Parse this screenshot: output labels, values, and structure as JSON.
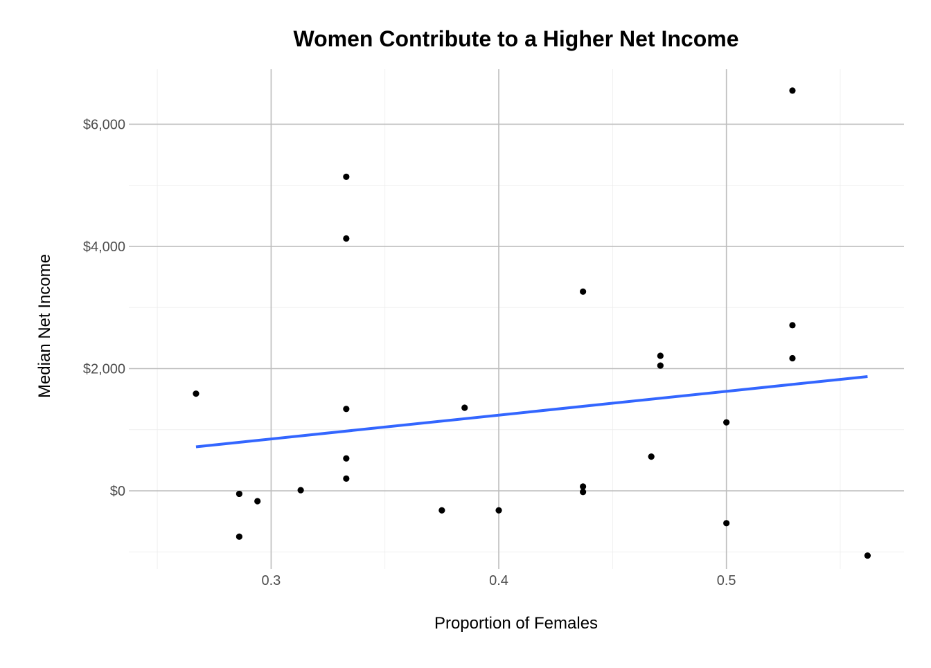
{
  "chart_data": {
    "type": "scatter",
    "title": "Women Contribute to a Higher Net Income",
    "xlabel": "Proportion of Females",
    "ylabel": "Median Net Income",
    "xlim": [
      0.2375,
      0.578
    ],
    "ylim": [
      -1280,
      6900
    ],
    "x_ticks": [
      0.3,
      0.4,
      0.5
    ],
    "x_tick_labels": [
      "0.3",
      "0.4",
      "0.5"
    ],
    "y_ticks": [
      0,
      2000,
      4000,
      6000
    ],
    "y_tick_labels": [
      "$0",
      "$2,000",
      "$4,000",
      "$6,000"
    ],
    "grid": "major and minor lines, light gray",
    "series": [
      {
        "points": [
          {
            "x": 0.267,
            "y": 1590
          },
          {
            "x": 0.286,
            "y": -50
          },
          {
            "x": 0.286,
            "y": -750
          },
          {
            "x": 0.294,
            "y": -170
          },
          {
            "x": 0.313,
            "y": 10
          },
          {
            "x": 0.333,
            "y": 5140
          },
          {
            "x": 0.333,
            "y": 4130
          },
          {
            "x": 0.333,
            "y": 1340
          },
          {
            "x": 0.333,
            "y": 530
          },
          {
            "x": 0.333,
            "y": 200
          },
          {
            "x": 0.375,
            "y": -320
          },
          {
            "x": 0.385,
            "y": 1360
          },
          {
            "x": 0.4,
            "y": -320
          },
          {
            "x": 0.437,
            "y": 3260
          },
          {
            "x": 0.437,
            "y": 70
          },
          {
            "x": 0.437,
            "y": -20
          },
          {
            "x": 0.467,
            "y": 560
          },
          {
            "x": 0.471,
            "y": 2210
          },
          {
            "x": 0.471,
            "y": 2050
          },
          {
            "x": 0.5,
            "y": 1120
          },
          {
            "x": 0.5,
            "y": -530
          },
          {
            "x": 0.529,
            "y": 6550
          },
          {
            "x": 0.529,
            "y": 2710
          },
          {
            "x": 0.529,
            "y": 2170
          },
          {
            "x": 0.562,
            "y": -1060
          }
        ]
      }
    ],
    "trend_line": {
      "x": [
        0.267,
        0.562
      ],
      "y": [
        720,
        1870
      ],
      "color": "#3366ff"
    }
  }
}
